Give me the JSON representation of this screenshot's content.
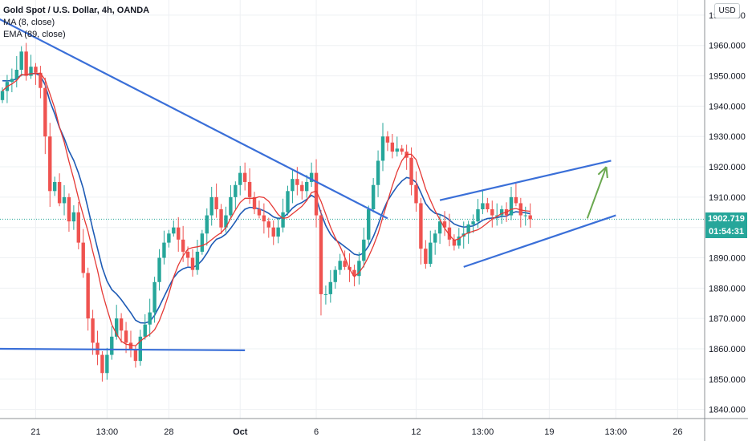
{
  "legend": {
    "symbol": "Gold Spot / U.S. Dollar, 4h, OANDA",
    "ma": "MA (8, close)",
    "ema": "EMA (89, close)"
  },
  "currency_label": "USD",
  "last_price": {
    "value": "1902.719",
    "countdown": "01:54:31",
    "price": 1902.719,
    "color": "#26a69a"
  },
  "colors": {
    "up": "#26a69a",
    "down": "#ef5350",
    "ma": "#e53935",
    "ema": "#1e5bb5",
    "trendline": "#3a6fd8",
    "arrow": "#6aa84f",
    "grid": "#eef0f3",
    "axis_text": "#131722"
  },
  "chart_data": {
    "type": "candlestick",
    "title": "Gold Spot / U.S. Dollar, 4h, OANDA",
    "ylim": [
      1837,
      1975
    ],
    "y_ticks": [
      1840,
      1850,
      1860,
      1870,
      1880,
      1890,
      1900,
      1910,
      1920,
      1930,
      1940,
      1950,
      1960,
      1970
    ],
    "y_tick_labels": [
      "1840.000",
      "1850.000",
      "1860.000",
      "1870.000",
      "1880.000",
      "1890.000",
      "1900.000",
      "1910.000",
      "1920.000",
      "1930.000",
      "1940.000",
      "1950.000",
      "1960.000",
      "1970.000"
    ],
    "x_ticks": [
      {
        "bar": 7,
        "label": "21"
      },
      {
        "bar": 22,
        "label": "13:00"
      },
      {
        "bar": 35,
        "label": "28"
      },
      {
        "bar": 50,
        "label": "Oct"
      },
      {
        "bar": 66,
        "label": "6"
      },
      {
        "bar": 87,
        "label": "12"
      },
      {
        "bar": 101,
        "label": "13:00"
      },
      {
        "bar": 115,
        "label": "19"
      },
      {
        "bar": 129,
        "label": "13:00"
      },
      {
        "bar": 142,
        "label": "26"
      }
    ],
    "close": [
      1945,
      1948,
      1949,
      1952,
      1958,
      1950,
      1953,
      1951,
      1946,
      1930,
      1912,
      1915,
      1908,
      1910,
      1902,
      1905,
      1895,
      1885,
      1870,
      1862,
      1858,
      1852,
      1858,
      1864,
      1870,
      1866,
      1862,
      1860,
      1856,
      1864,
      1868,
      1872,
      1882,
      1890,
      1895,
      1898,
      1900,
      1896,
      1892,
      1890,
      1886,
      1892,
      1898,
      1904,
      1910,
      1906,
      1900,
      1904,
      1910,
      1914,
      1918,
      1915,
      1910,
      1906,
      1904,
      1902,
      1900,
      1897,
      1900,
      1905,
      1912,
      1916,
      1914,
      1912,
      1915,
      1918,
      1904,
      1878,
      1878,
      1882,
      1886,
      1889,
      1887,
      1886,
      1884,
      1889,
      1896,
      1906,
      1914,
      1922,
      1930,
      1928,
      1925,
      1926,
      1925,
      1923,
      1914,
      1908,
      1893,
      1888,
      1895,
      1898,
      1902,
      1900,
      1896,
      1894,
      1897,
      1898,
      1901,
      1902,
      1906,
      1908,
      1906,
      1904,
      1904,
      1906,
      1904,
      1910,
      1908,
      1904,
      1904,
      1902.7
    ],
    "ma_period": 8,
    "ema_period": 89,
    "annotations": [
      {
        "type": "line",
        "from": [
          -1,
          1969
        ],
        "to": [
          81,
          1903
        ]
      },
      {
        "type": "line",
        "from": [
          -1,
          1860
        ],
        "to": [
          51,
          1859.5
        ]
      },
      {
        "type": "line",
        "from": [
          92,
          1909
        ],
        "to": [
          128,
          1922
        ]
      },
      {
        "type": "line",
        "from": [
          97,
          1887
        ],
        "to": [
          129,
          1904
        ]
      },
      {
        "type": "arrow",
        "from": [
          123,
          1903
        ],
        "to": [
          127,
          1920
        ]
      }
    ]
  }
}
